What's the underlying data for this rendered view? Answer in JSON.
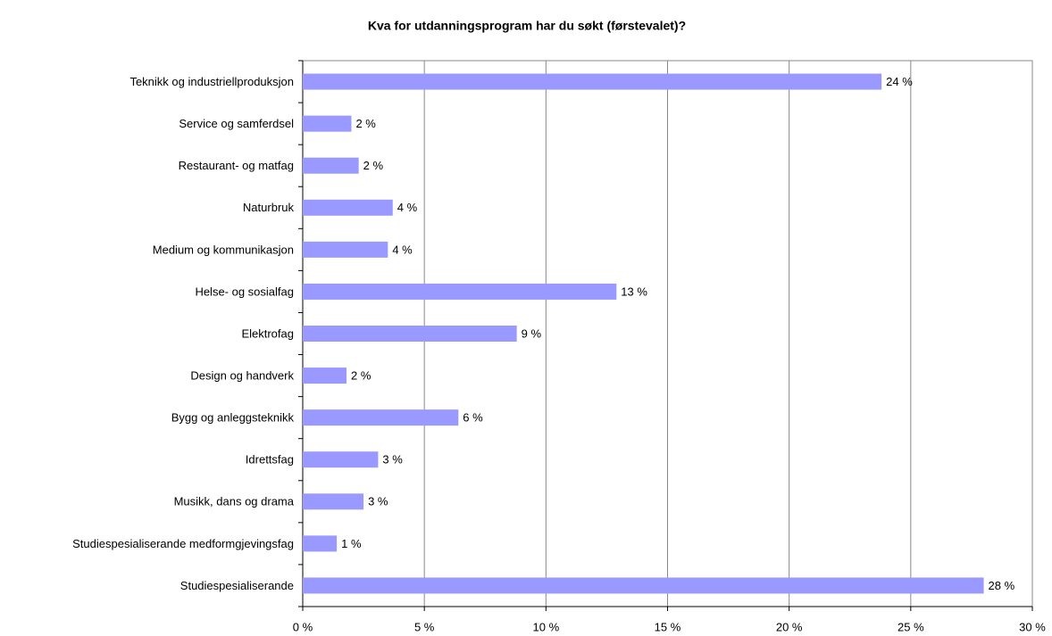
{
  "chart_data": {
    "type": "barh",
    "title": "Kva for utdanningsprogram har du søkt (førstevalet)?",
    "categories": [
      "Teknikk og industriellproduksjon",
      "Service og samferdsel",
      "Restaurant- og matfag",
      "Naturbruk",
      "Medium og kommunikasjon",
      "Helse- og sosialfag",
      "Elektrofag",
      "Design og handverk",
      "Bygg og anleggsteknikk",
      "Idrettsfag",
      "Musikk, dans og drama",
      "Studiespesialiserande medformgjevingsfag",
      "Studiespesialiserande"
    ],
    "values": [
      23.8,
      2.0,
      2.3,
      3.7,
      3.5,
      12.9,
      8.8,
      1.8,
      6.4,
      3.1,
      2.5,
      1.4,
      28.0
    ],
    "value_labels": [
      "24 %",
      "2 %",
      "2 %",
      "4 %",
      "4 %",
      "13 %",
      "9 %",
      "2 %",
      "6 %",
      "3 %",
      "3 %",
      "1 %",
      "28 %"
    ],
    "color": "#9999ff",
    "xlim": [
      0,
      30
    ],
    "xticks": [
      {
        "value": 0,
        "label": "0 %"
      },
      {
        "value": 5,
        "label": "5 %"
      },
      {
        "value": 10,
        "label": "10 %"
      },
      {
        "value": 15,
        "label": "15 %"
      },
      {
        "value": 20,
        "label": "20 %"
      },
      {
        "value": 25,
        "label": "25 %"
      },
      {
        "value": 30,
        "label": "30 %"
      }
    ],
    "grid": true
  }
}
